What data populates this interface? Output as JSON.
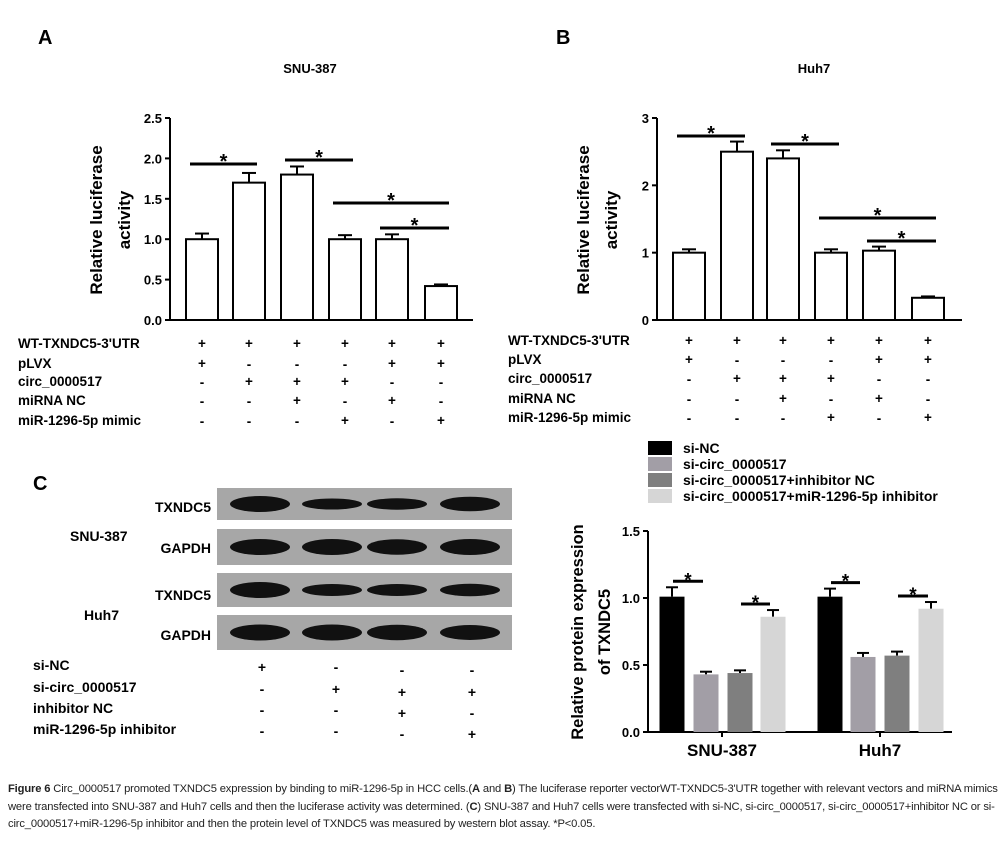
{
  "panels": {
    "A": {
      "letter": "A"
    },
    "B": {
      "letter": "B"
    },
    "C": {
      "letter": "C"
    }
  },
  "chart_data": [
    {
      "id": "A",
      "type": "bar",
      "title": "SNU-387",
      "ylabel": [
        "Relative luciferase",
        "activity"
      ],
      "ylim": [
        0,
        2.5
      ],
      "yticks": [
        "0.0",
        "0.5",
        "1.0",
        "1.5",
        "2.0",
        "2.5"
      ],
      "ytick_values": [
        0,
        0.5,
        1.0,
        1.5,
        2.0,
        2.5
      ],
      "values": [
        1.0,
        1.7,
        1.8,
        1.0,
        1.0,
        0.42
      ],
      "errors": [
        0.07,
        0.12,
        0.1,
        0.05,
        0.06,
        0.02
      ],
      "bar_fill": "#ffffff",
      "significance": [
        {
          "bars": [
            0,
            1
          ],
          "label": "*"
        },
        {
          "bars": [
            2,
            3
          ],
          "label": "*"
        },
        {
          "bars": [
            3,
            5
          ],
          "label": "*"
        },
        {
          "bars": [
            4,
            5
          ],
          "label": "*"
        }
      ],
      "conditions": [
        {
          "name": "WT-TXNDC5-3'UTR",
          "signs": [
            "+",
            "+",
            "+",
            "+",
            "+",
            "+"
          ]
        },
        {
          "name": "pLVX",
          "signs": [
            "+",
            "-",
            "-",
            "-",
            "+",
            "+"
          ]
        },
        {
          "name": "circ_0000517",
          "signs": [
            "-",
            "+",
            "+",
            "+",
            "-",
            "-"
          ]
        },
        {
          "name": "miRNA NC",
          "signs": [
            "-",
            "-",
            "+",
            "-",
            "+",
            "-"
          ]
        },
        {
          "name": "miR-1296-5p mimic",
          "signs": [
            "-",
            "-",
            "-",
            "+",
            "-",
            "+"
          ]
        }
      ]
    },
    {
      "id": "B",
      "type": "bar",
      "title": "Huh7",
      "ylabel": [
        "Relative luciferase",
        "activity"
      ],
      "ylim": [
        0,
        3
      ],
      "yticks": [
        "0",
        "1",
        "2",
        "3"
      ],
      "ytick_values": [
        0,
        1,
        2,
        3
      ],
      "values": [
        1.0,
        2.5,
        2.4,
        1.0,
        1.03,
        0.33
      ],
      "errors": [
        0.05,
        0.15,
        0.12,
        0.05,
        0.06,
        0.02
      ],
      "bar_fill": "#ffffff",
      "significance": [
        {
          "bars": [
            0,
            1
          ],
          "label": "*"
        },
        {
          "bars": [
            2,
            3
          ],
          "label": "*"
        },
        {
          "bars": [
            3,
            5
          ],
          "label": "*"
        },
        {
          "bars": [
            4,
            5
          ],
          "label": "*"
        }
      ],
      "conditions": [
        {
          "name": "WT-TXNDC5-3'UTR",
          "signs": [
            "+",
            "+",
            "+",
            "+",
            "+",
            "+"
          ]
        },
        {
          "name": "pLVX",
          "signs": [
            "+",
            "-",
            "-",
            "-",
            "+",
            "+"
          ]
        },
        {
          "name": "circ_0000517",
          "signs": [
            "-",
            "+",
            "+",
            "+",
            "-",
            "-"
          ]
        },
        {
          "name": "miRNA NC",
          "signs": [
            "-",
            "-",
            "+",
            "-",
            "+",
            "-"
          ]
        },
        {
          "name": "miR-1296-5p mimic",
          "signs": [
            "-",
            "-",
            "-",
            "+",
            "-",
            "+"
          ]
        }
      ]
    },
    {
      "id": "C",
      "type": "bar",
      "ylabel": [
        "Relative protein expression",
        "of TXNDC5"
      ],
      "ylim": [
        0,
        1.5
      ],
      "yticks": [
        "0.0",
        "0.5",
        "1.0",
        "1.5"
      ],
      "ytick_values": [
        0,
        0.5,
        1.0,
        1.5
      ],
      "categories": [
        "SNU-387",
        "Huh7"
      ],
      "legend_position": "top",
      "series": [
        {
          "name": "si-NC",
          "color": "#000000",
          "values": [
            1.01,
            1.01
          ],
          "errors": [
            0.07,
            0.06
          ]
        },
        {
          "name": "si-circ_0000517",
          "color": "#a29ea6",
          "values": [
            0.43,
            0.56
          ],
          "errors": [
            0.02,
            0.03
          ]
        },
        {
          "name": "si-circ_0000517+inhibitor NC",
          "color": "#7f7f7f",
          "values": [
            0.44,
            0.57
          ],
          "errors": [
            0.02,
            0.03
          ]
        },
        {
          "name": "si-circ_0000517+miR-1296-5p inhibitor",
          "color": "#d6d6d6",
          "values": [
            0.86,
            0.92
          ],
          "errors": [
            0.05,
            0.05
          ]
        }
      ],
      "significance": [
        {
          "group": 0,
          "series": [
            0,
            1
          ],
          "label": "*"
        },
        {
          "group": 0,
          "series": [
            2,
            3
          ],
          "label": "*"
        },
        {
          "group": 1,
          "series": [
            0,
            1
          ],
          "label": "*"
        },
        {
          "group": 1,
          "series": [
            2,
            3
          ],
          "label": "*"
        }
      ]
    }
  ],
  "blot": {
    "cell_lines": [
      "SNU-387",
      "Huh7"
    ],
    "bands": [
      "TXNDC5",
      "GAPDH",
      "TXNDC5",
      "GAPDH"
    ],
    "band_intensity": [
      [
        1.0,
        0.5,
        0.55,
        0.85
      ],
      [
        1.0,
        1.0,
        0.95,
        1.0
      ],
      [
        1.0,
        0.6,
        0.6,
        0.65
      ],
      [
        1.0,
        1.0,
        0.95,
        0.9
      ]
    ],
    "conditions": [
      {
        "name": "si-NC",
        "signs": [
          "+",
          "-",
          "-",
          "-"
        ]
      },
      {
        "name": "si-circ_0000517",
        "signs": [
          "-",
          "+",
          "+",
          "+"
        ]
      },
      {
        "name": "inhibitor NC",
        "signs": [
          "-",
          "-",
          "+",
          "-"
        ]
      },
      {
        "name": "miR-1296-5p inhibitor",
        "signs": [
          "-",
          "-",
          "-",
          "+"
        ]
      }
    ]
  },
  "caption": [
    {
      "text": "Figure 6",
      "bold": true
    },
    {
      "text": " Circ_0000517 promoted TXNDC5 expression by binding to miR-1296-5p in HCC cells.(",
      "bold": false
    },
    {
      "text": "A",
      "bold": true
    },
    {
      "text": " and ",
      "bold": false
    },
    {
      "text": "B",
      "bold": true
    },
    {
      "text": ") The luciferase reporter vectorWT-TXNDC5-3'UTR together with relevant vectors and miRNA mimics were transfected into SNU-387 and Huh7 cells and then the luciferase activity was determined. (",
      "bold": false
    },
    {
      "text": "C",
      "bold": true
    },
    {
      "text": ") SNU-387 and Huh7 cells were transfected with si-NC, si-circ_0000517, si-circ_0000517+inhibitor NC or si-circ_0000517+miR-1296-5p inhibitor and then the protein level of TXNDC5 was measured by western blot assay. *P<0.05.",
      "bold": false
    }
  ]
}
